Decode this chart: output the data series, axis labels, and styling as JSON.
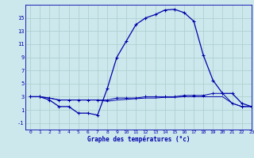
{
  "xlabel": "Graphe des températures (°c)",
  "bg_color": "#cce8ec",
  "grid_color": "#aacccc",
  "line_color": "#0000aa",
  "hours": [
    0,
    1,
    2,
    3,
    4,
    5,
    6,
    7,
    8,
    9,
    10,
    11,
    12,
    13,
    14,
    15,
    16,
    17,
    18,
    19,
    20,
    21,
    22,
    23
  ],
  "temp_main": [
    3.0,
    3.0,
    2.5,
    1.5,
    1.5,
    0.5,
    0.5,
    0.2,
    4.2,
    9.0,
    11.5,
    14.0,
    15.0,
    15.5,
    16.2,
    16.3,
    15.8,
    14.5,
    9.3,
    5.5,
    3.5,
    3.5,
    2.0,
    1.5
  ],
  "temp_dew": [
    3.0,
    3.0,
    2.8,
    2.5,
    2.5,
    2.5,
    2.5,
    2.5,
    2.5,
    2.8,
    2.8,
    2.8,
    3.0,
    3.0,
    3.0,
    3.0,
    3.2,
    3.2,
    3.2,
    3.5,
    3.5,
    2.0,
    1.5,
    1.5
  ],
  "temp_min": [
    3.0,
    3.0,
    2.8,
    2.5,
    2.5,
    2.5,
    2.5,
    2.5,
    2.3,
    2.5,
    2.6,
    2.7,
    2.8,
    2.8,
    2.9,
    2.9,
    3.0,
    3.0,
    3.0,
    3.0,
    3.0,
    2.0,
    1.5,
    1.5
  ],
  "ylim": [
    -2,
    17
  ],
  "yticks": [
    -1,
    1,
    3,
    5,
    7,
    9,
    11,
    13,
    15
  ],
  "xlim": [
    -0.5,
    23
  ],
  "xtick_labels": [
    "0",
    "1",
    "2",
    "3",
    "4",
    "5",
    "6",
    "7",
    "8",
    "9",
    "10",
    "11",
    "12",
    "13",
    "14",
    "15",
    "16",
    "17",
    "18",
    "19",
    "20",
    "21",
    "22",
    "23"
  ]
}
